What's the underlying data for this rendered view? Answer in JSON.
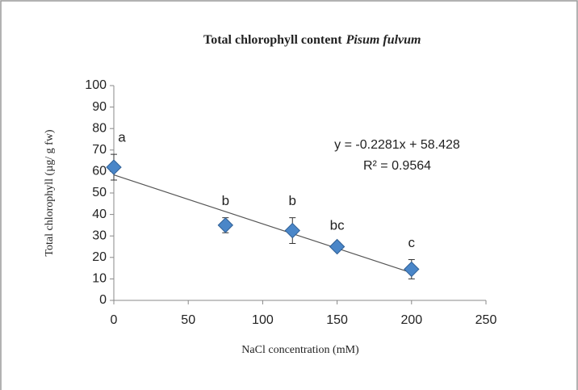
{
  "chart_data": {
    "type": "scatter",
    "title": "Total chlorophyll  content",
    "title_species": "Pisum fulvum",
    "x_label": "NaCl concentration (mM)",
    "y_label": "Total chlorophyll (µg/ g fw)",
    "x": [
      0,
      75,
      120,
      150,
      200
    ],
    "values": [
      62,
      35,
      32.5,
      25,
      14.5
    ],
    "errors": [
      6,
      3.5,
      6,
      2,
      4.5
    ],
    "point_labels": [
      "a",
      "b",
      "b",
      "bc",
      "c"
    ],
    "color": "#4a86c8",
    "trendline": {
      "slope": -0.2281,
      "intercept": 58.428,
      "equation": "y = -0.2281x + 58.428",
      "r2": "R² = 0.9564"
    },
    "xlim": [
      0,
      250
    ],
    "xticks": [
      0,
      50,
      100,
      150,
      200,
      250
    ],
    "ylim": [
      0,
      100
    ],
    "yticks": [
      0,
      10,
      20,
      30,
      40,
      50,
      60,
      70,
      80,
      90,
      100
    ],
    "grid": false
  }
}
